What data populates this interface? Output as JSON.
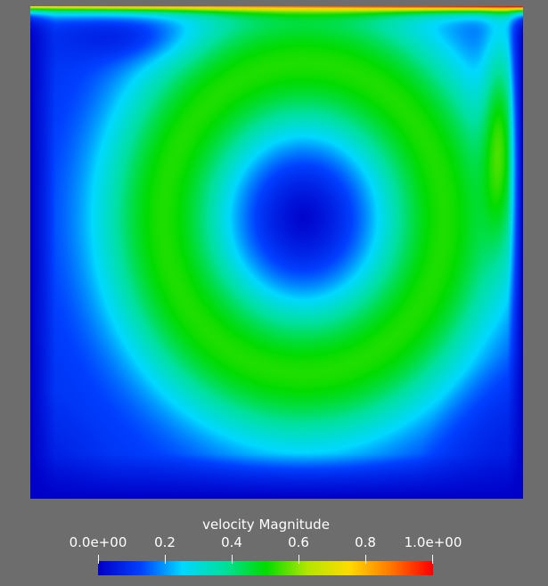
{
  "legend": {
    "title": "velocity Magnitude",
    "ticks": [
      {
        "label": "0.0e+00",
        "value": 0.0
      },
      {
        "label": "0.2",
        "value": 0.2
      },
      {
        "label": "0.4",
        "value": 0.4
      },
      {
        "label": "0.6",
        "value": 0.6
      },
      {
        "label": "0.8",
        "value": 0.8
      },
      {
        "label": "1.0e+00",
        "value": 1.0
      }
    ],
    "range": [
      0.0,
      1.0
    ],
    "colormap": [
      "#0000c8",
      "#0040ff",
      "#00d8ff",
      "#00e0a0",
      "#00dc00",
      "#b4e600",
      "#ffdc00",
      "#ff7800",
      "#ff0000"
    ]
  },
  "colors": {
    "background": "#6d6d6d",
    "text": "#ffffff"
  }
}
